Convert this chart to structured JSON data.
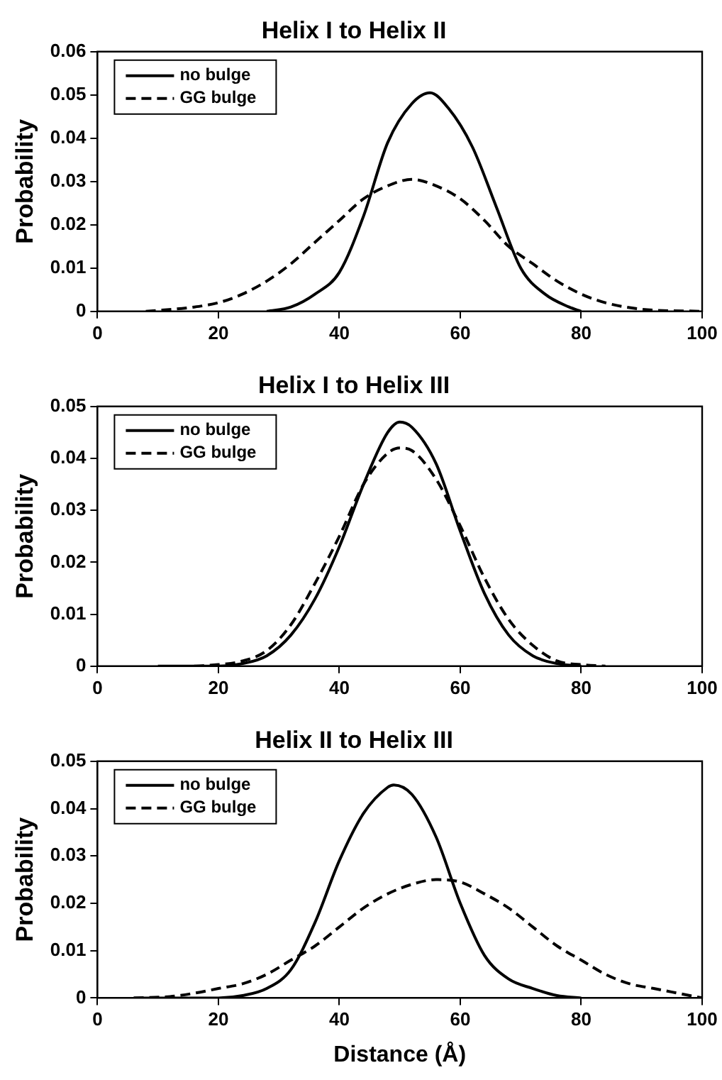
{
  "chart_data": [
    {
      "type": "line",
      "title": "Helix I to Helix II",
      "ylabel": "Probability",
      "xlim": [
        0,
        100
      ],
      "xticks": [
        0,
        20,
        40,
        60,
        80,
        100
      ],
      "ylim": [
        0,
        0.06
      ],
      "yticks": [
        0,
        0.01,
        0.02,
        0.03,
        0.04,
        0.05,
        0.06
      ],
      "grid": false,
      "legend": "top left",
      "marker": "none",
      "series": [
        {
          "name": "no bulge",
          "color": "#000000",
          "line_style": "solid",
          "x": [
            28,
            32,
            36,
            40,
            44,
            48,
            52,
            55,
            58,
            62,
            66,
            70,
            74,
            78,
            80
          ],
          "values": [
            0,
            0.001,
            0.004,
            0.009,
            0.022,
            0.039,
            0.048,
            0.0505,
            0.047,
            0.038,
            0.024,
            0.01,
            0.004,
            0.001,
            0
          ]
        },
        {
          "name": "GG bulge",
          "color": "#000000",
          "line_style": "dashed",
          "x": [
            8,
            16,
            20,
            24,
            28,
            32,
            36,
            40,
            44,
            48,
            52,
            56,
            60,
            64,
            68,
            72,
            76,
            80,
            84,
            90,
            100
          ],
          "values": [
            0,
            0.001,
            0.002,
            0.004,
            0.007,
            0.011,
            0.016,
            0.021,
            0.026,
            0.029,
            0.0305,
            0.029,
            0.026,
            0.021,
            0.015,
            0.011,
            0.007,
            0.004,
            0.002,
            0.0005,
            0
          ]
        }
      ]
    },
    {
      "type": "line",
      "title": "Helix I to Helix III",
      "ylabel": "Probability",
      "xlim": [
        0,
        100
      ],
      "xticks": [
        0,
        20,
        40,
        60,
        80,
        100
      ],
      "ylim": [
        0,
        0.05
      ],
      "yticks": [
        0,
        0.01,
        0.02,
        0.03,
        0.04,
        0.05
      ],
      "grid": false,
      "legend": "top left",
      "marker": "none",
      "series": [
        {
          "name": "no bulge",
          "color": "#000000",
          "line_style": "solid",
          "x": [
            10,
            20,
            24,
            28,
            32,
            36,
            40,
            44,
            48,
            50,
            52,
            56,
            60,
            64,
            68,
            72,
            76,
            80
          ],
          "values": [
            0,
            0,
            0.0005,
            0.002,
            0.006,
            0.013,
            0.023,
            0.035,
            0.045,
            0.047,
            0.046,
            0.039,
            0.026,
            0.014,
            0.006,
            0.002,
            0.0005,
            0
          ]
        },
        {
          "name": "GG bulge",
          "color": "#000000",
          "line_style": "dashed",
          "x": [
            16,
            20,
            24,
            28,
            32,
            36,
            40,
            44,
            48,
            50,
            52,
            56,
            60,
            64,
            68,
            72,
            76,
            80,
            84
          ],
          "values": [
            0,
            0.0003,
            0.001,
            0.003,
            0.008,
            0.016,
            0.025,
            0.035,
            0.041,
            0.042,
            0.0415,
            0.036,
            0.027,
            0.017,
            0.009,
            0.004,
            0.001,
            0.0003,
            0
          ]
        }
      ]
    },
    {
      "type": "line",
      "title": "Helix II to Helix III",
      "xlabel": "Distance (Å)",
      "ylabel": "Probability",
      "xlim": [
        0,
        100
      ],
      "xticks": [
        0,
        20,
        40,
        60,
        80,
        100
      ],
      "ylim": [
        0,
        0.05
      ],
      "yticks": [
        0,
        0.01,
        0.02,
        0.03,
        0.04,
        0.05
      ],
      "grid": false,
      "legend": "top left",
      "marker": "none",
      "series": [
        {
          "name": "no bulge",
          "color": "#000000",
          "line_style": "solid",
          "x": [
            6,
            20,
            24,
            28,
            32,
            36,
            40,
            44,
            48,
            49,
            52,
            56,
            60,
            64,
            68,
            72,
            76,
            80
          ],
          "values": [
            0,
            0,
            0.0005,
            0.002,
            0.006,
            0.016,
            0.029,
            0.039,
            0.0445,
            0.045,
            0.043,
            0.034,
            0.02,
            0.009,
            0.004,
            0.002,
            0.0005,
            0
          ]
        },
        {
          "name": "GG bulge",
          "color": "#000000",
          "line_style": "dashed",
          "x": [
            6,
            12,
            16,
            20,
            24,
            28,
            32,
            36,
            40,
            44,
            48,
            52,
            56,
            60,
            64,
            68,
            72,
            76,
            80,
            84,
            88,
            92,
            96,
            100
          ],
          "values": [
            0,
            0.0003,
            0.001,
            0.002,
            0.003,
            0.005,
            0.008,
            0.011,
            0.015,
            0.019,
            0.022,
            0.024,
            0.025,
            0.0245,
            0.022,
            0.019,
            0.015,
            0.011,
            0.008,
            0.005,
            0.003,
            0.002,
            0.001,
            0
          ]
        }
      ]
    }
  ]
}
